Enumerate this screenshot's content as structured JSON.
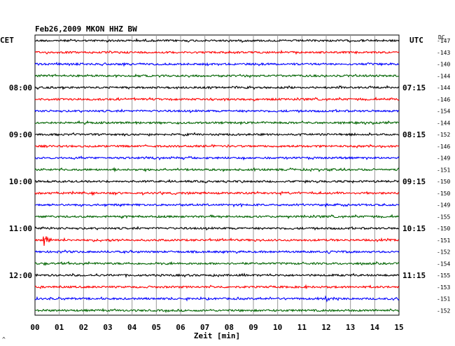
{
  "chart_data": {
    "type": "line",
    "title": "Feb26,2009   MKON HHZ BW",
    "left_axis_label": "CET",
    "right_axis_label": "UTC",
    "dc_label": "DC",
    "xlabel": "Zeit [min]",
    "xlim": [
      0,
      15
    ],
    "x_ticks": [
      "00",
      "01",
      "02",
      "03",
      "04",
      "05",
      "06",
      "07",
      "08",
      "09",
      "10",
      "11",
      "12",
      "13",
      "14",
      "15"
    ],
    "grid": true,
    "trace_colors": [
      "#000000",
      "#ff0000",
      "#0000ff",
      "#006400"
    ],
    "cet_labels": [
      {
        "trace": 4,
        "label": "08:00"
      },
      {
        "trace": 8,
        "label": "09:00"
      },
      {
        "trace": 12,
        "label": "10:00"
      },
      {
        "trace": 16,
        "label": "11:00"
      },
      {
        "trace": 20,
        "label": "12:00"
      }
    ],
    "utc_labels": [
      {
        "trace": 4,
        "label": "07:15"
      },
      {
        "trace": 8,
        "label": "08:15"
      },
      {
        "trace": 12,
        "label": "09:15"
      },
      {
        "trace": 16,
        "label": "10:15"
      },
      {
        "trace": 20,
        "label": "11:15"
      }
    ],
    "dc_values": [
      "-147",
      "-143",
      "-140",
      "-144",
      "-144",
      "-146",
      "-154",
      "-144",
      "-152",
      "-146",
      "-149",
      "-151",
      "-150",
      "-150",
      "-149",
      "-155",
      "-150",
      "-151",
      "-152",
      "-154",
      "-155",
      "-153",
      "-151",
      "-152"
    ],
    "events": [
      {
        "trace": 17,
        "minute": 0.35,
        "amplitude": 16
      },
      {
        "trace": 22,
        "minute": 12.0,
        "amplitude": 4
      },
      {
        "trace": 18,
        "minute": 12.1,
        "amplitude": 4
      }
    ]
  },
  "corner_mark": "^"
}
